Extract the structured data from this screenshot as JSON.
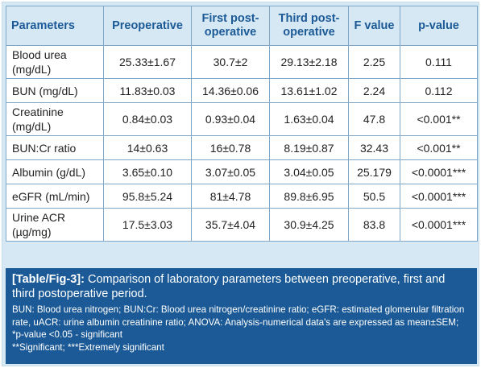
{
  "table": {
    "headers": [
      "Parameters",
      "Preoperative",
      "First post-operative",
      "Third post-operative",
      "F value",
      "p-value"
    ],
    "rows": [
      {
        "param": "Blood urea (mg/dL)",
        "pre": "25.33±1.67",
        "first": "30.7±2",
        "third": "29.13±2.18",
        "f": "2.25",
        "p": "0.111"
      },
      {
        "param": "BUN (mg/dL)",
        "pre": "11.83±0.03",
        "first": "14.36±0.06",
        "third": "13.61±1.02",
        "f": "2.24",
        "p": "0.112"
      },
      {
        "param": "Creatinine (mg/dL)",
        "pre": "0.84±0.03",
        "first": "0.93±0.04",
        "third": "1.63±0.04",
        "f": "47.8",
        "p": "<0.001**"
      },
      {
        "param": "BUN:Cr ratio",
        "pre": "14±0.63",
        "first": "16±0.78",
        "third": "8.19±0.87",
        "f": "32.43",
        "p": "<0.001**"
      },
      {
        "param": "Albumin (g/dL)",
        "pre": "3.65±0.10",
        "first": "3.07±0.05",
        "third": "3.04±0.05",
        "f": "25.179",
        "p": "<0.0001***"
      },
      {
        "param": "eGFR (mL/min)",
        "pre": "95.8±5.24",
        "first": "81±4.78",
        "third": "89.8±6.95",
        "f": "50.5",
        "p": "<0.0001***"
      },
      {
        "param": "Urine ACR (µg/mg)",
        "pre": "17.5±3.03",
        "first": "35.7±4.04",
        "third": "30.9±4.25",
        "f": "83.8",
        "p": "<0.0001***"
      }
    ]
  },
  "caption": {
    "label": "[Table/Fig-3]:",
    "title": "Comparison of laboratory parameters between preoperative, first and third postoperative period.",
    "notes": [
      "BUN: Blood urea nitrogen; BUN:Cr: Blood urea nitrogen/creatinine ratio; eGFR: estimated glomerular filtration rate, uACR: urine albumin creatinine ratio; ANOVA: Analysis-numerical data's are expressed as mean±SEM; *p-value <0.05 - significant",
      "**Significant; ***Extremely significant"
    ]
  },
  "colors": {
    "header_bg": "#d7e8f5",
    "header_text": "#1b5a96",
    "caption_bg": "#1b5a96",
    "border": "#7fa7c9"
  }
}
